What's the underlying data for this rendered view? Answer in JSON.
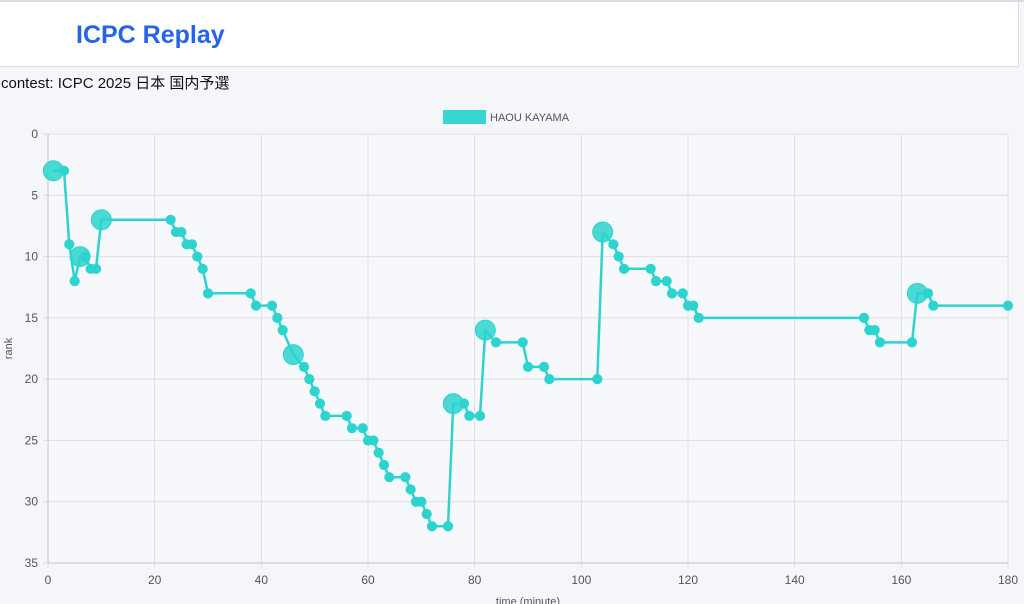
{
  "app": {
    "title": "ICPC Replay"
  },
  "contest": {
    "label": "contest: ICPC 2025 日本 国内予選"
  },
  "colors": {
    "brand": "#2563eb",
    "series": "#2dd4cf",
    "grid": "#dcdfe4"
  },
  "chart_data": {
    "type": "line",
    "xlabel": "time (minute)",
    "ylabel": "rank",
    "xlim": [
      0,
      180
    ],
    "ylim": [
      0,
      35
    ],
    "y_reversed": true,
    "xticks": [
      0,
      20,
      40,
      60,
      80,
      100,
      120,
      140,
      160,
      180
    ],
    "yticks": [
      0,
      5,
      10,
      15,
      20,
      25,
      30,
      35
    ],
    "grid": true,
    "legend": "top-center",
    "series": [
      {
        "name": "HAOU KAYAMA",
        "color": "#2dd4cf",
        "points": [
          {
            "x": 1,
            "y": 3,
            "big": true
          },
          {
            "x": 3,
            "y": 3
          },
          {
            "x": 4,
            "y": 9
          },
          {
            "x": 5,
            "y": 12
          },
          {
            "x": 6,
            "y": 10,
            "big": true
          },
          {
            "x": 7,
            "y": 10
          },
          {
            "x": 8,
            "y": 11
          },
          {
            "x": 9,
            "y": 11
          },
          {
            "x": 10,
            "y": 7,
            "big": true
          },
          {
            "x": 23,
            "y": 7
          },
          {
            "x": 24,
            "y": 8
          },
          {
            "x": 25,
            "y": 8
          },
          {
            "x": 26,
            "y": 9
          },
          {
            "x": 27,
            "y": 9
          },
          {
            "x": 28,
            "y": 10
          },
          {
            "x": 29,
            "y": 11
          },
          {
            "x": 30,
            "y": 13
          },
          {
            "x": 38,
            "y": 13
          },
          {
            "x": 39,
            "y": 14
          },
          {
            "x": 42,
            "y": 14
          },
          {
            "x": 43,
            "y": 15
          },
          {
            "x": 44,
            "y": 16
          },
          {
            "x": 46,
            "y": 18,
            "big": true
          },
          {
            "x": 48,
            "y": 19
          },
          {
            "x": 49,
            "y": 20
          },
          {
            "x": 50,
            "y": 21
          },
          {
            "x": 51,
            "y": 22
          },
          {
            "x": 52,
            "y": 23
          },
          {
            "x": 56,
            "y": 23
          },
          {
            "x": 57,
            "y": 24
          },
          {
            "x": 59,
            "y": 24
          },
          {
            "x": 60,
            "y": 25
          },
          {
            "x": 61,
            "y": 25
          },
          {
            "x": 62,
            "y": 26
          },
          {
            "x": 63,
            "y": 27
          },
          {
            "x": 64,
            "y": 28
          },
          {
            "x": 67,
            "y": 28
          },
          {
            "x": 68,
            "y": 29
          },
          {
            "x": 69,
            "y": 30
          },
          {
            "x": 70,
            "y": 30
          },
          {
            "x": 71,
            "y": 31
          },
          {
            "x": 72,
            "y": 32
          },
          {
            "x": 75,
            "y": 32
          },
          {
            "x": 76,
            "y": 22,
            "big": true
          },
          {
            "x": 78,
            "y": 22
          },
          {
            "x": 79,
            "y": 23
          },
          {
            "x": 81,
            "y": 23
          },
          {
            "x": 82,
            "y": 16,
            "big": true
          },
          {
            "x": 84,
            "y": 17
          },
          {
            "x": 89,
            "y": 17
          },
          {
            "x": 90,
            "y": 19
          },
          {
            "x": 93,
            "y": 19
          },
          {
            "x": 94,
            "y": 20
          },
          {
            "x": 103,
            "y": 20
          },
          {
            "x": 104,
            "y": 8,
            "big": true
          },
          {
            "x": 106,
            "y": 9
          },
          {
            "x": 107,
            "y": 10
          },
          {
            "x": 108,
            "y": 11
          },
          {
            "x": 113,
            "y": 11
          },
          {
            "x": 114,
            "y": 12
          },
          {
            "x": 116,
            "y": 12
          },
          {
            "x": 117,
            "y": 13
          },
          {
            "x": 119,
            "y": 13
          },
          {
            "x": 120,
            "y": 14
          },
          {
            "x": 121,
            "y": 14
          },
          {
            "x": 122,
            "y": 15
          },
          {
            "x": 153,
            "y": 15
          },
          {
            "x": 154,
            "y": 16
          },
          {
            "x": 155,
            "y": 16
          },
          {
            "x": 156,
            "y": 17
          },
          {
            "x": 162,
            "y": 17
          },
          {
            "x": 163,
            "y": 13,
            "big": true
          },
          {
            "x": 165,
            "y": 13
          },
          {
            "x": 166,
            "y": 14
          },
          {
            "x": 180,
            "y": 14
          }
        ]
      }
    ]
  }
}
